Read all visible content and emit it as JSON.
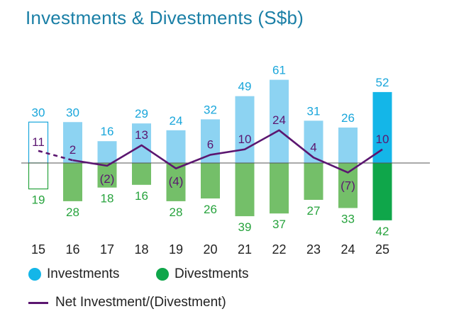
{
  "title": "Investments & Divestments (S$b)",
  "legend": {
    "investments": "Investments",
    "divestments": "Divestments",
    "net": "Net Investment/(Divestment)"
  },
  "colors": {
    "investments": "#8dd3f2",
    "investments_latest": "#14b6e8",
    "divestments": "#74bf69",
    "divestments_latest": "#0fa64a",
    "net": "#5b1670",
    "investments_label": "#19a6db",
    "divestments_label": "#27a33d",
    "title": "#1a7fa6"
  },
  "chart_data": {
    "type": "bar",
    "categories": [
      "15",
      "16",
      "17",
      "18",
      "19",
      "20",
      "21",
      "22",
      "23",
      "24",
      "25"
    ],
    "series": [
      {
        "name": "Investments",
        "values": [
          30,
          30,
          16,
          29,
          24,
          32,
          49,
          61,
          31,
          26,
          52
        ]
      },
      {
        "name": "Divestments",
        "values": [
          19,
          28,
          18,
          16,
          28,
          26,
          39,
          37,
          27,
          33,
          42
        ]
      },
      {
        "name": "Net Investment/(Divestment)",
        "type": "line",
        "values": [
          11,
          2,
          -2,
          13,
          -4,
          6,
          10,
          24,
          4,
          -7,
          10
        ]
      }
    ],
    "investment_labels": [
      "30",
      "30",
      "16",
      "29",
      "24",
      "32",
      "49",
      "61",
      "31",
      "26",
      "52"
    ],
    "divestment_labels": [
      "19",
      "28",
      "18",
      "16",
      "28",
      "26",
      "39",
      "37",
      "27",
      "33",
      "42"
    ],
    "net_labels": [
      "11",
      "2",
      "(2)",
      "13",
      "(4)",
      "6",
      "10",
      "24",
      "4",
      "(7)",
      "10"
    ],
    "first_bar_outlined": true,
    "first_segment_dashed": true,
    "ylim": [
      -42,
      61
    ]
  }
}
